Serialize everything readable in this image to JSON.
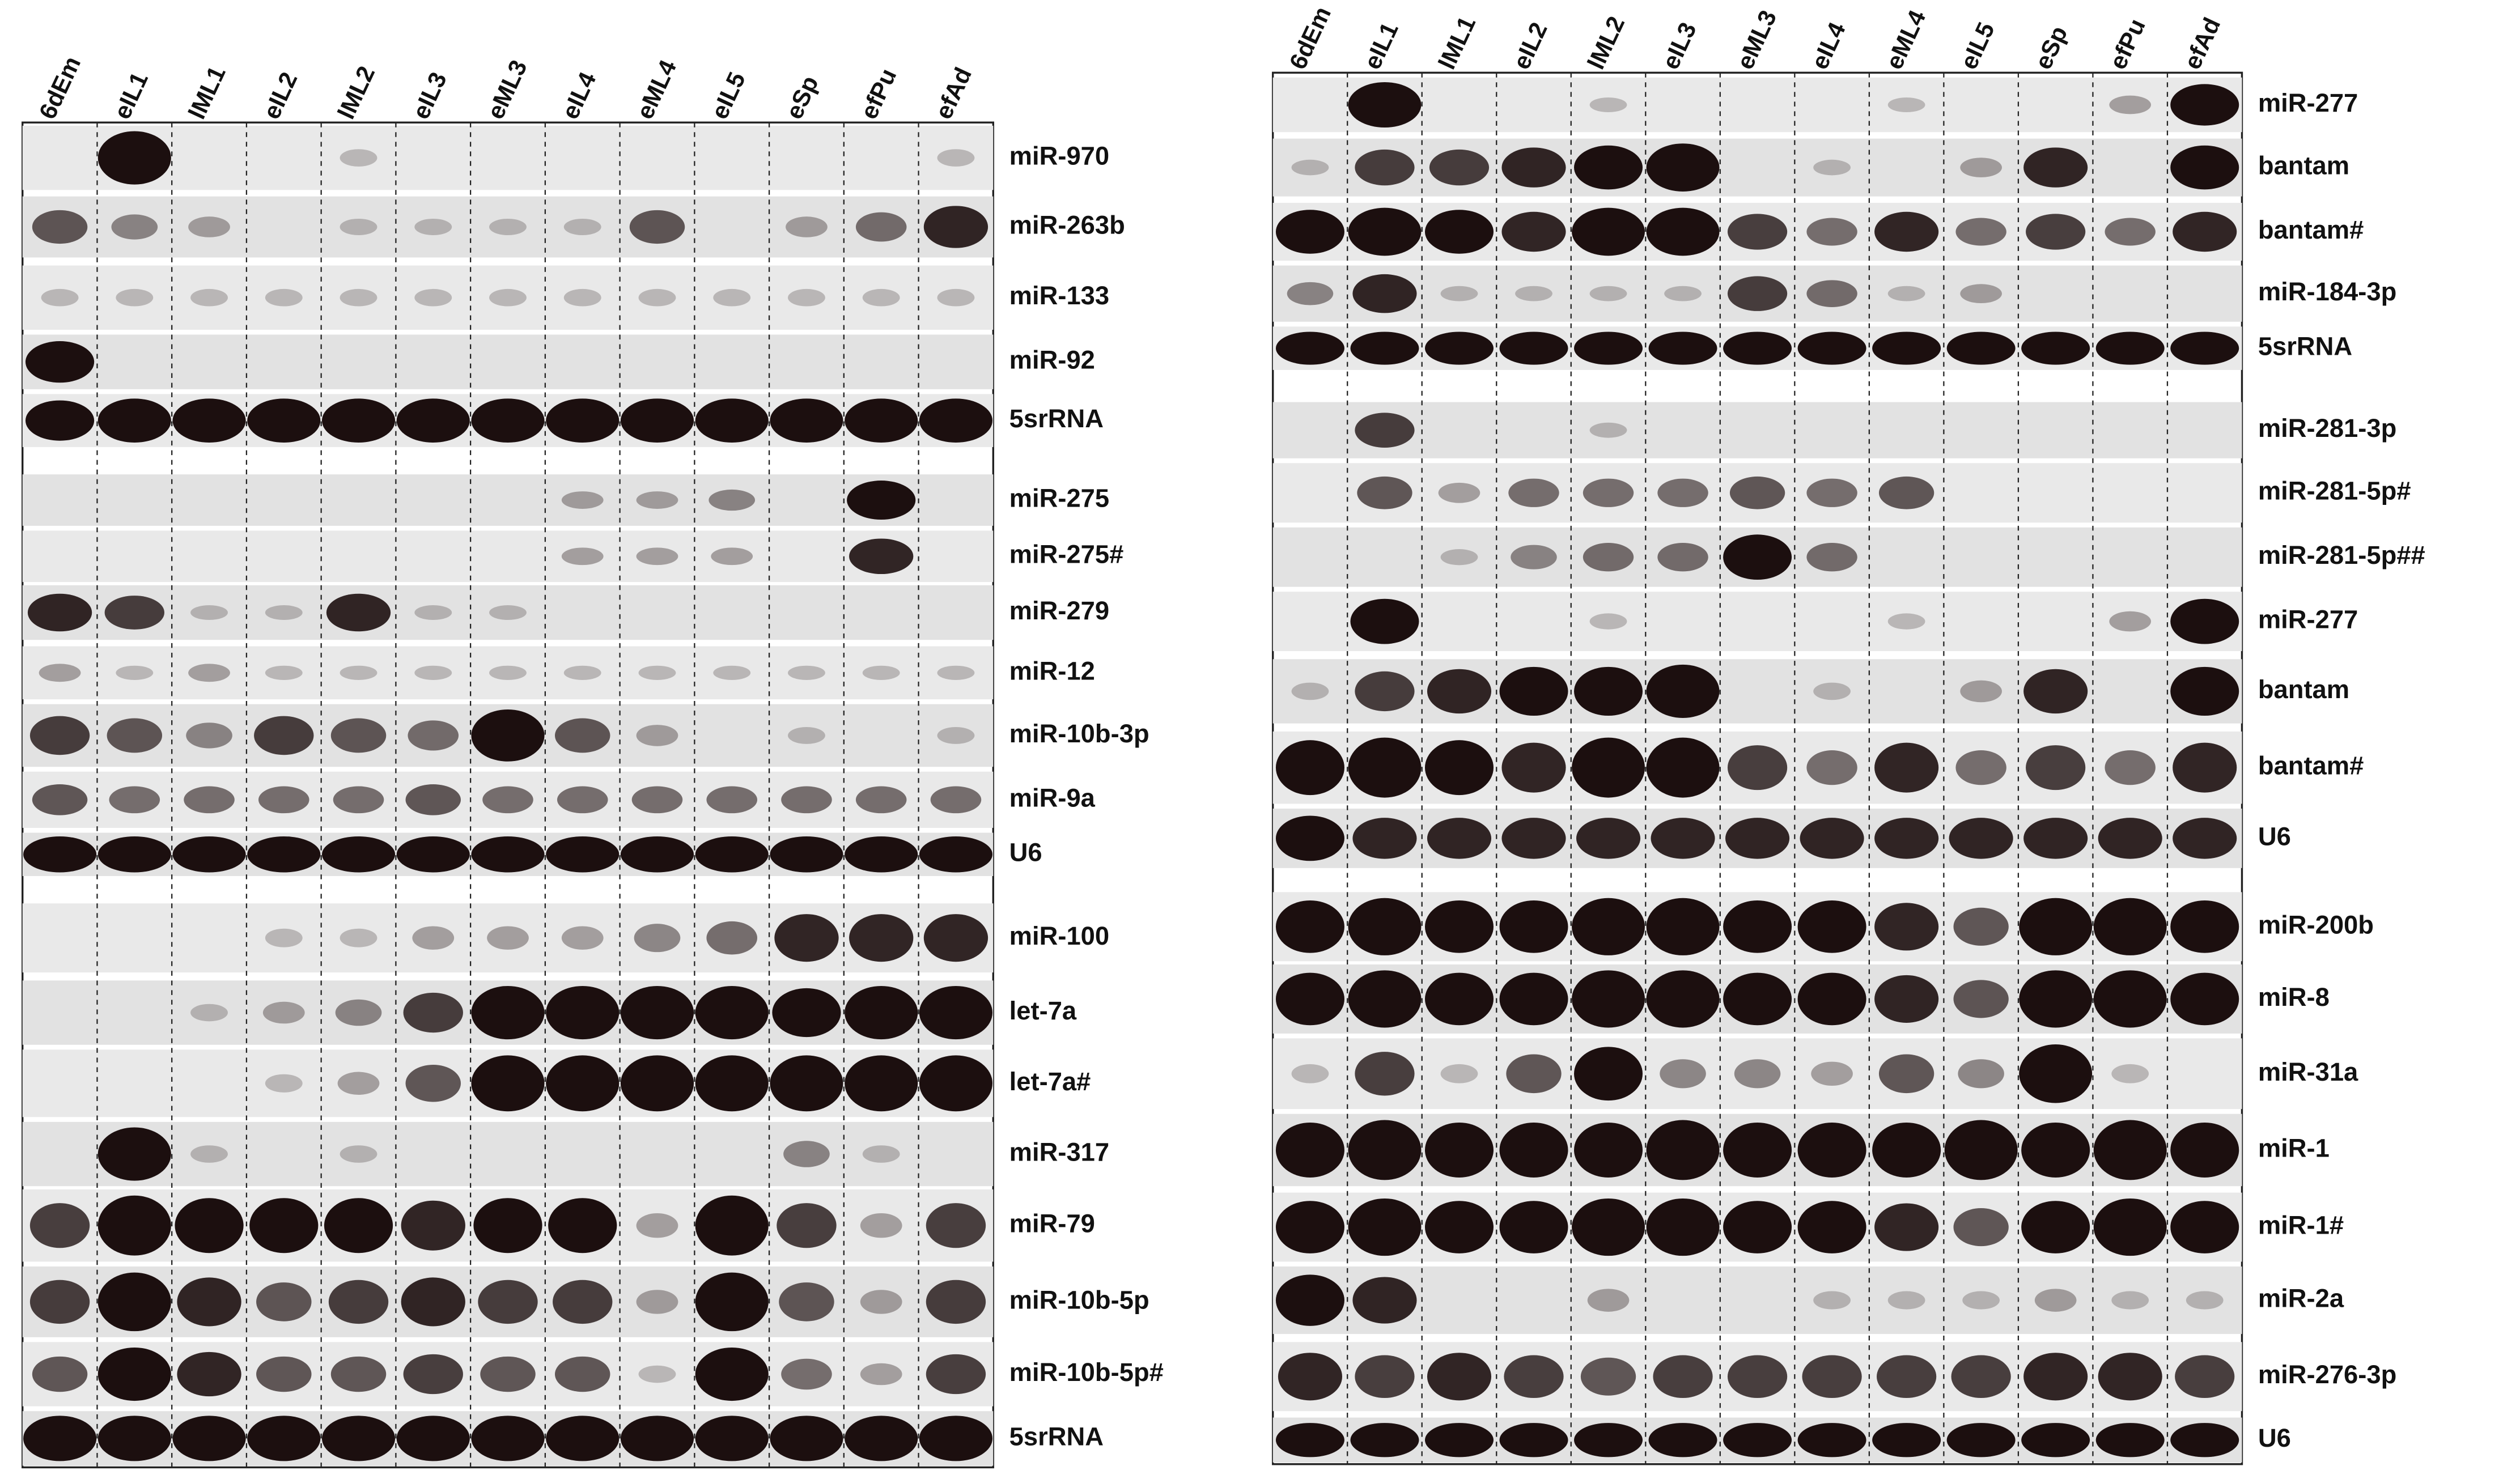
{
  "left_panel": {
    "lanes": [
      "6dEm",
      "eIL1",
      "lML1",
      "eIL2",
      "lML2",
      "eIL3",
      "eML3",
      "eIL4",
      "eML4",
      "eIL5",
      "eSp",
      "efPu",
      "efAd"
    ],
    "rows": [
      "miR-970",
      "miR-263b",
      "miR-133",
      "miR-92",
      "5srRNA",
      "miR-275",
      "miR-275#",
      "miR-279",
      "miR-12",
      "miR-10b-3p",
      "miR-9a",
      "U6",
      "miR-100",
      "let-7a",
      "let-7a#",
      "miR-317",
      "miR-79",
      "miR-10b-5p",
      "miR-10b-5p#",
      "5srRNA"
    ]
  },
  "right_panel": {
    "lanes": [
      "6dEm",
      "eIL1",
      "lML1",
      "eIL2",
      "lML2",
      "eIL3",
      "eML3",
      "eIL4",
      "eML4",
      "eIL5",
      "eSp",
      "efPu",
      "efAd"
    ],
    "rows": [
      "miR-277",
      "bantam",
      "bantam#",
      "miR-184-3p",
      "5srRNA",
      "miR-281-3p",
      "miR-281-5p#",
      "miR-281-5p##",
      "miR-277",
      "bantam",
      "bantam#",
      "U6",
      "miR-200b",
      "miR-8",
      "miR-31a",
      "miR-1",
      "miR-1#",
      "miR-2a",
      "miR-276-3p",
      "U6"
    ]
  }
}
